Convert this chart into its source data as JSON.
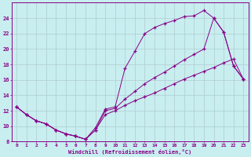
{
  "xlabel": "Windchill (Refroidissement éolien,°C)",
  "bg_color": "#c8eef0",
  "line_color": "#880088",
  "grid_color": "#b0ccd0",
  "xlim": [
    -0.5,
    23.5
  ],
  "ylim": [
    8,
    26
  ],
  "xticks": [
    0,
    1,
    2,
    3,
    4,
    5,
    6,
    7,
    8,
    9,
    10,
    11,
    12,
    13,
    14,
    15,
    16,
    17,
    18,
    19,
    20,
    21,
    22,
    23
  ],
  "yticks": [
    8,
    10,
    12,
    14,
    16,
    18,
    20,
    22,
    24
  ],
  "line1_x": [
    0,
    1,
    2,
    3,
    4,
    5,
    6,
    7,
    8,
    9,
    10,
    11,
    12,
    13,
    14,
    15,
    16,
    17,
    18,
    19,
    20,
    21,
    22,
    23
  ],
  "line1_y": [
    12.5,
    11.5,
    10.7,
    10.3,
    9.5,
    9.0,
    8.7,
    8.3,
    9.8,
    12.2,
    12.5,
    17.5,
    19.7,
    22.0,
    22.8,
    23.3,
    23.7,
    24.2,
    24.3,
    25.0,
    24.0,
    22.2,
    17.8,
    16.1
  ],
  "line2_x": [
    0,
    1,
    2,
    3,
    4,
    5,
    6,
    7,
    8,
    9,
    10,
    11,
    12,
    13,
    14,
    15,
    16,
    17,
    18,
    19,
    20,
    21,
    22,
    23
  ],
  "line2_y": [
    12.5,
    11.5,
    10.7,
    10.3,
    9.5,
    9.0,
    8.7,
    8.3,
    9.5,
    11.5,
    12.0,
    12.7,
    13.3,
    13.8,
    14.3,
    14.9,
    15.5,
    16.1,
    16.6,
    17.1,
    17.6,
    18.2,
    18.7,
    16.1
  ],
  "line3_x": [
    0,
    1,
    2,
    3,
    4,
    5,
    6,
    7,
    8,
    9,
    10,
    11,
    12,
    13,
    14,
    15,
    16,
    17,
    18,
    19,
    20,
    21,
    22,
    23
  ],
  "line3_y": [
    12.5,
    11.5,
    10.7,
    10.3,
    9.5,
    9.0,
    8.7,
    8.3,
    9.5,
    12.0,
    12.3,
    13.5,
    14.5,
    15.5,
    16.3,
    17.0,
    17.8,
    18.6,
    19.3,
    20.0,
    24.0,
    22.2,
    17.8,
    16.1
  ]
}
